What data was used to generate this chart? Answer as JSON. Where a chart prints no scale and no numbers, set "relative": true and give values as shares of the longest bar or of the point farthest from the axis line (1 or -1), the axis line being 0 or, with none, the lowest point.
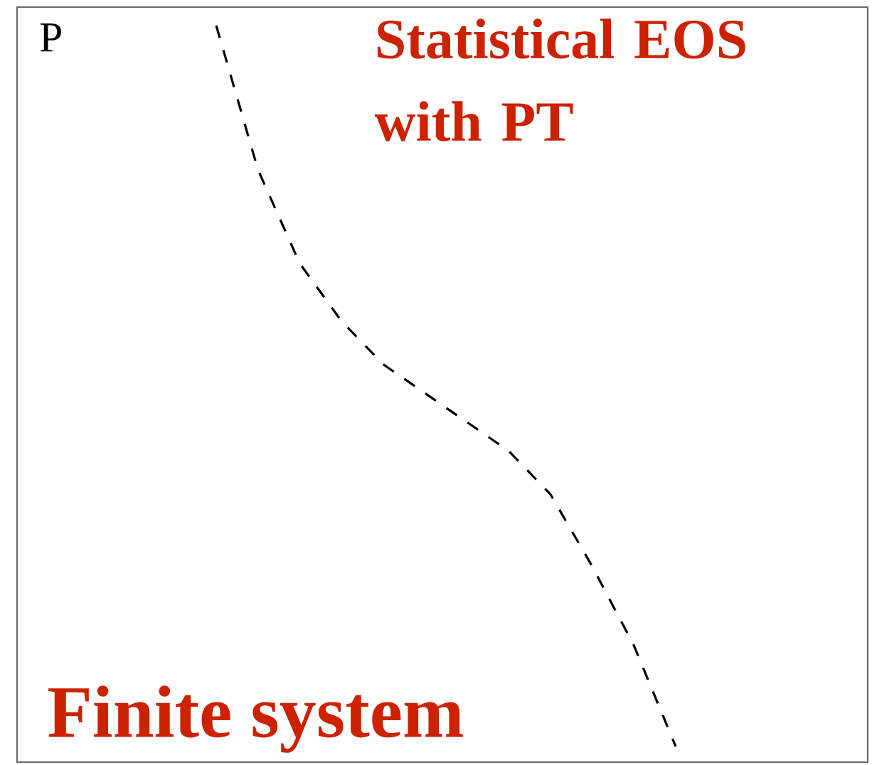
{
  "chart_data": {
    "type": "line",
    "relative": true,
    "ylabel": "P",
    "annotations": [
      "Statistical EOS with PT",
      "Finite system"
    ],
    "categories": [
      null,
      null,
      null,
      null,
      null,
      null,
      null,
      null,
      null,
      null,
      null,
      null
    ],
    "series": [
      {
        "color": "#000000",
        "values": [
          1,
          0.8,
          0.67,
          0.59,
          0.53,
          0.49,
          0.45,
          0.41,
          0.35,
          0.25,
          0.14,
          0
        ]
      }
    ],
    "line_style": "dashed",
    "marker": "none"
  }
}
